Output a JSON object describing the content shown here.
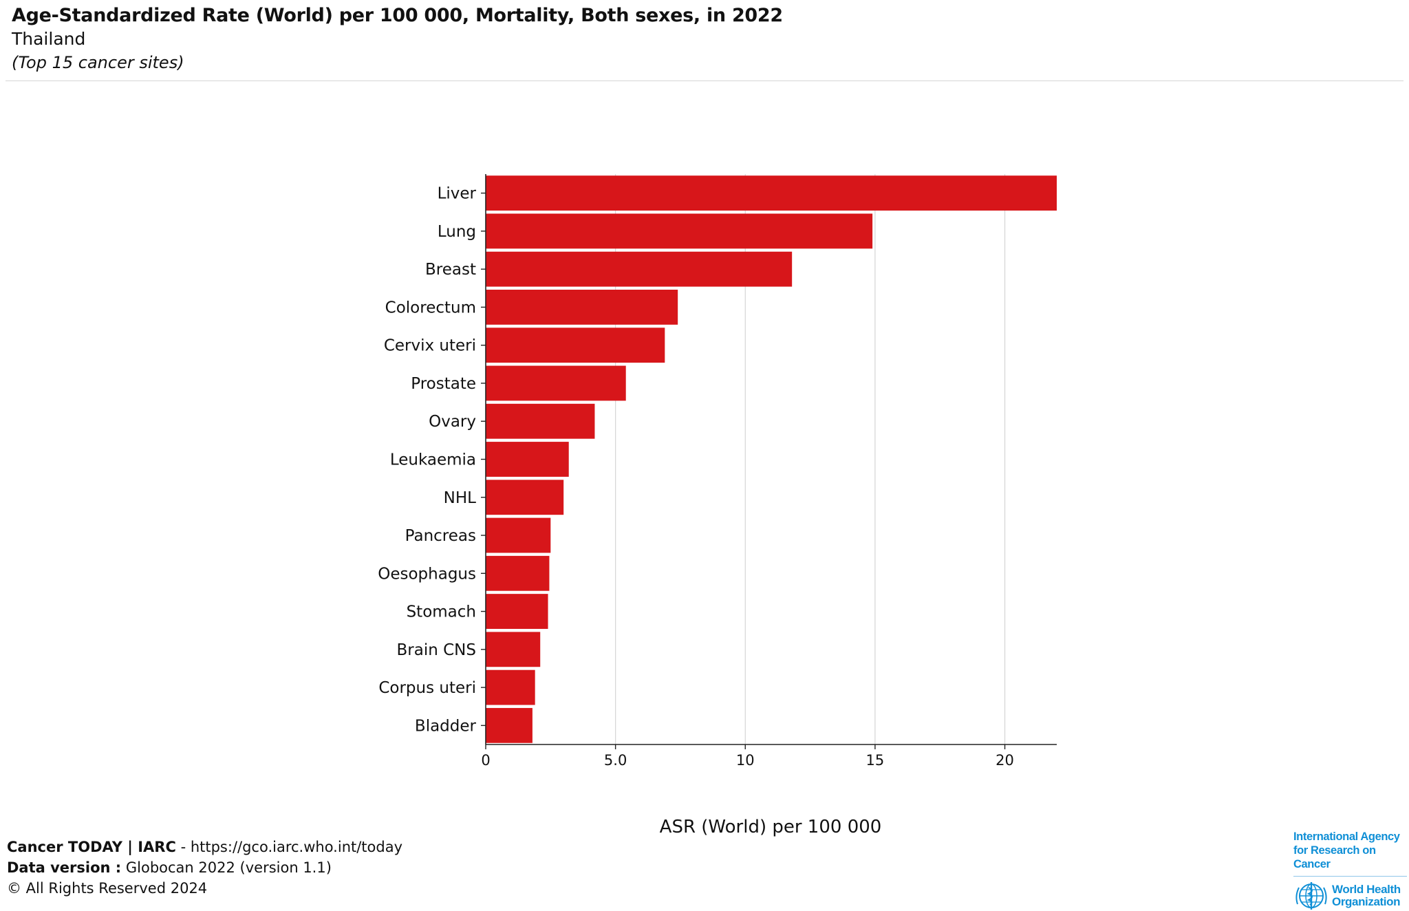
{
  "header": {
    "title": "Age-Standardized Rate (World) per 100 000, Mortality, Both sexes, in 2022",
    "subtitle": "Thailand",
    "subnote": "(Top 15 cancer sites)"
  },
  "chart_data": {
    "type": "bar",
    "orientation": "horizontal",
    "categories": [
      "Liver",
      "Lung",
      "Breast",
      "Colorectum",
      "Cervix uteri",
      "Prostate",
      "Ovary",
      "Leukaemia",
      "NHL",
      "Pancreas",
      "Oesophagus",
      "Stomach",
      "Brain CNS",
      "Corpus uteri",
      "Bladder"
    ],
    "values": [
      22.0,
      14.9,
      11.8,
      7.4,
      6.9,
      5.4,
      4.2,
      3.2,
      3.0,
      2.5,
      2.45,
      2.4,
      2.1,
      1.9,
      1.8
    ],
    "xlabel": "ASR (World) per 100 000",
    "xlim": [
      0,
      22
    ],
    "xticks": [
      "0",
      "5.0",
      "10",
      "15",
      "20"
    ],
    "bar_color": "#d7161a",
    "grid": "vertical"
  },
  "footer": {
    "line1_bold": "Cancer TODAY | IARC",
    "line1_rest": " - https://gco.iarc.who.int/today",
    "line2_bold": "Data version :",
    "line2_rest": " Globocan 2022 (version 1.1)",
    "line3": "© All Rights Reserved 2024"
  },
  "logos": {
    "iarc_line1": "International Agency",
    "iarc_line2": "for Research on Cancer",
    "who_line1": "World Health",
    "who_line2": "Organization",
    "brand_color": "#0f8fd6"
  }
}
